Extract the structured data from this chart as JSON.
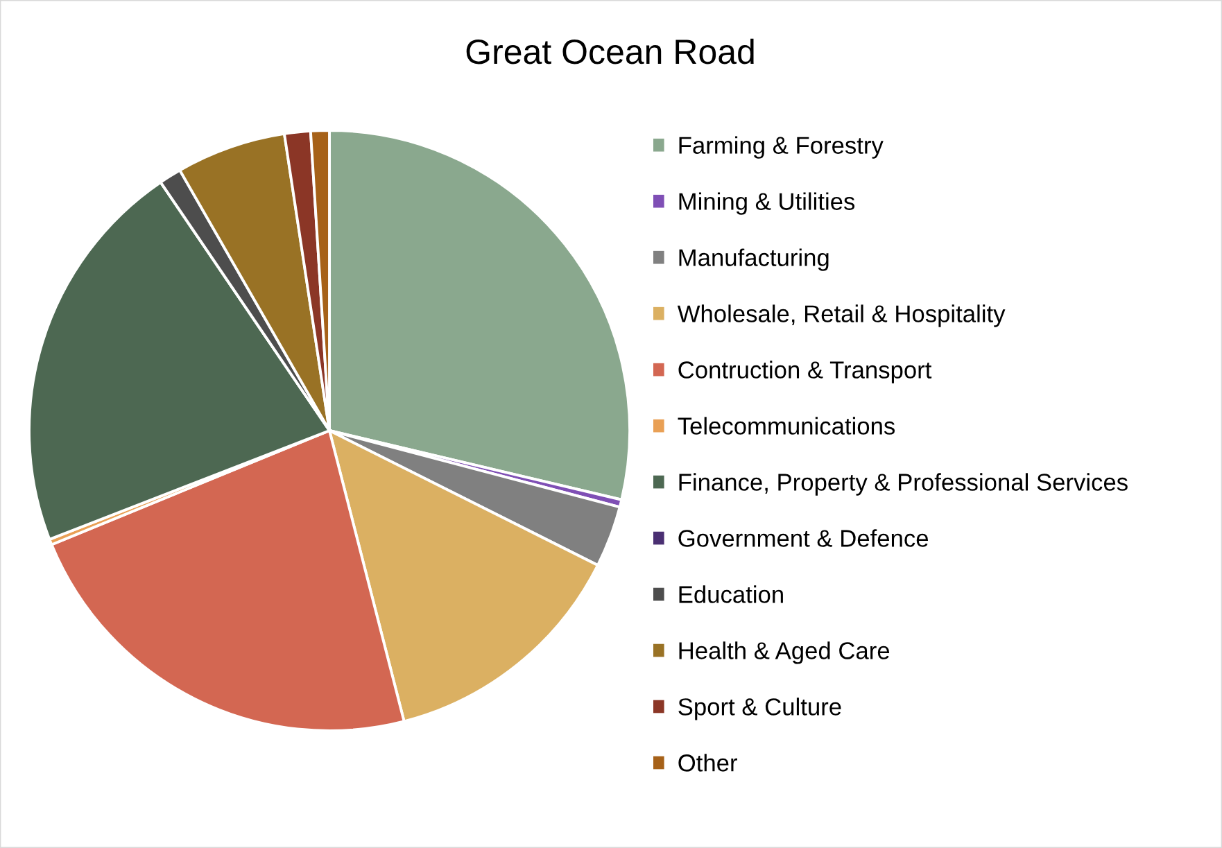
{
  "chart_data": {
    "type": "pie",
    "title": "Great Ocean Road",
    "categories": [
      "Farming & Forestry",
      "Mining & Utilities",
      "Manufacturing",
      "Wholesale, Retail & Hospitality",
      "Contruction & Transport",
      "Telecommunications",
      "Finance, Property & Professional Services",
      "Government & Defence",
      "Education",
      "Health & Aged Care",
      "Sport & Culture",
      "Other"
    ],
    "values": [
      28.7,
      0.4,
      3.3,
      13.6,
      22.8,
      0.3,
      21.4,
      0,
      1.2,
      5.9,
      1.4,
      1.0
    ],
    "colors": [
      "#8aa88e",
      "#7f4fb5",
      "#808080",
      "#dbb062",
      "#d36752",
      "#e9a055",
      "#4d6852",
      "#4a2f72",
      "#4d4d4d",
      "#997225",
      "#8b3626",
      "#a66118"
    ],
    "legend": "right"
  }
}
